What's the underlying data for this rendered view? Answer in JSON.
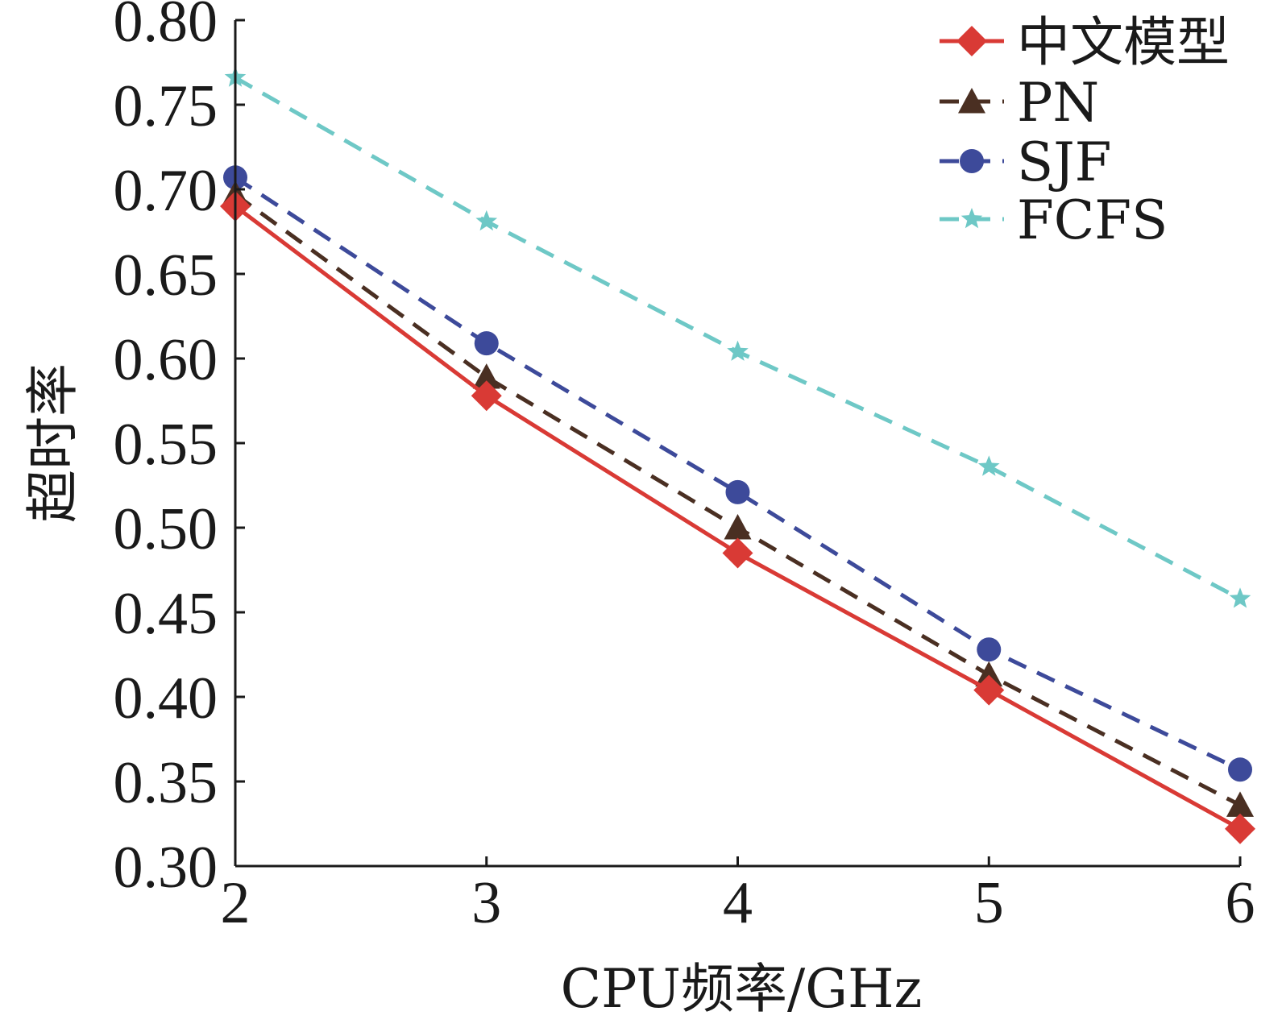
{
  "chart_data": {
    "type": "line",
    "xlabel": "CPU频率/GHz",
    "ylabel": "超时率",
    "x": [
      2,
      3,
      4,
      5,
      6
    ],
    "xlim": [
      2,
      6
    ],
    "ylim": [
      0.3,
      0.8
    ],
    "xticks": [
      "2",
      "3",
      "4",
      "5",
      "6"
    ],
    "yticks": [
      "0.30",
      "0.35",
      "0.40",
      "0.45",
      "0.50",
      "0.55",
      "0.60",
      "0.65",
      "0.70",
      "0.75",
      "0.80"
    ],
    "grid": false,
    "legend_position": "top-right",
    "series": [
      {
        "name": "中文模型",
        "values": [
          0.69,
          0.578,
          0.485,
          0.404,
          0.322
        ],
        "color": "#d93a35",
        "marker": "diamond",
        "dash": "solid"
      },
      {
        "name": "PN",
        "values": [
          0.697,
          0.589,
          0.5,
          0.413,
          0.336
        ],
        "color": "#4a2f22",
        "marker": "triangle",
        "dash": "dashed"
      },
      {
        "name": "SJF",
        "values": [
          0.707,
          0.609,
          0.521,
          0.428,
          0.357
        ],
        "color": "#3d4a9a",
        "marker": "circle",
        "dash": "dashed"
      },
      {
        "name": "FCFS",
        "values": [
          0.766,
          0.681,
          0.604,
          0.536,
          0.458
        ],
        "color": "#6ec8c6",
        "marker": "star",
        "dash": "dashed"
      }
    ]
  }
}
